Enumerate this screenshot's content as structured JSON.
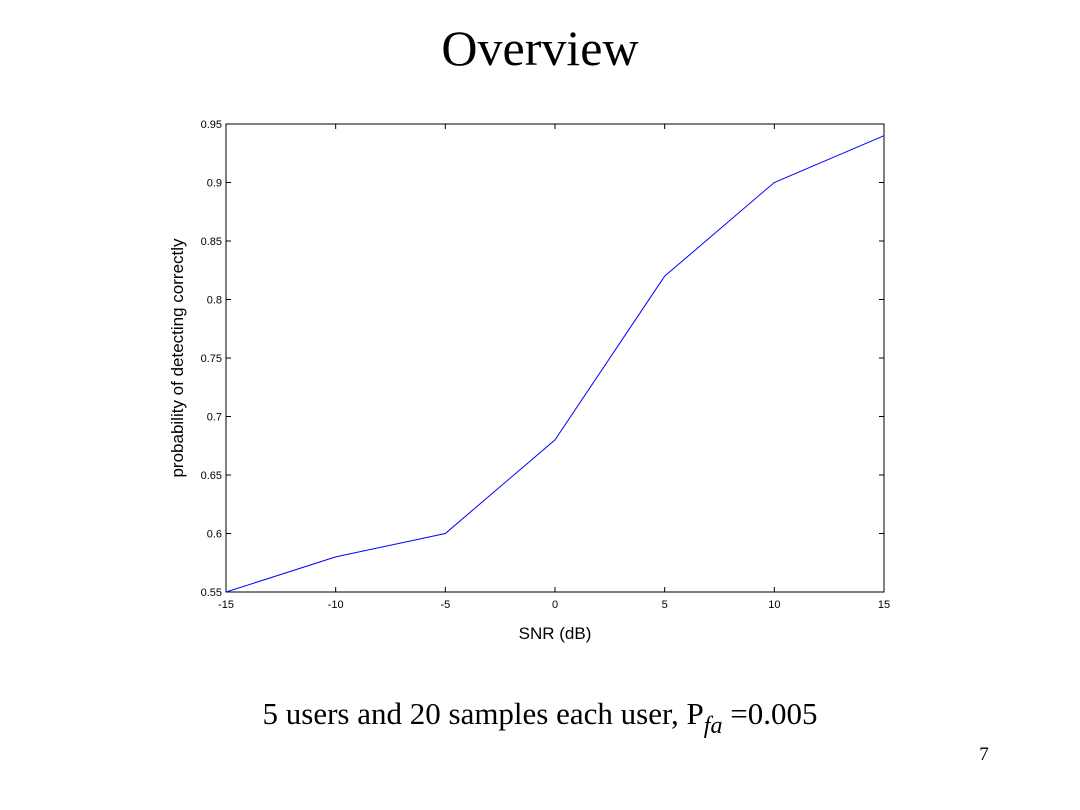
{
  "slide": {
    "title": "Overview",
    "page_number": "7",
    "caption": {
      "prefix": "5 users and 20 samples each user, P",
      "subscript": "fa",
      "suffix": " =0.005"
    }
  },
  "chart_data": {
    "type": "line",
    "title": "",
    "xlabel": "SNR (dB)",
    "ylabel": "probability of detecting correctly",
    "xlim": [
      -15,
      15
    ],
    "ylim": [
      0.55,
      0.95
    ],
    "x_ticks": [
      -15,
      -10,
      -5,
      0,
      5,
      10,
      15
    ],
    "y_ticks": [
      0.55,
      0.6,
      0.65,
      0.7,
      0.75,
      0.8,
      0.85,
      0.9,
      0.95
    ],
    "x_tick_labels": [
      "-15",
      "-10",
      "-5",
      "0",
      "5",
      "10",
      "15"
    ],
    "y_tick_labels": [
      "0.55",
      "0.6",
      "0.65",
      "0.7",
      "0.75",
      "0.8",
      "0.85",
      "0.9",
      "0.95"
    ],
    "grid": false,
    "legend": "none",
    "line_color": "#0000ff",
    "series": [
      {
        "x": [
          -15,
          -10,
          -5,
          0,
          5,
          10,
          15
        ],
        "values": [
          0.55,
          0.58,
          0.6,
          0.68,
          0.82,
          0.9,
          0.94
        ]
      }
    ]
  }
}
